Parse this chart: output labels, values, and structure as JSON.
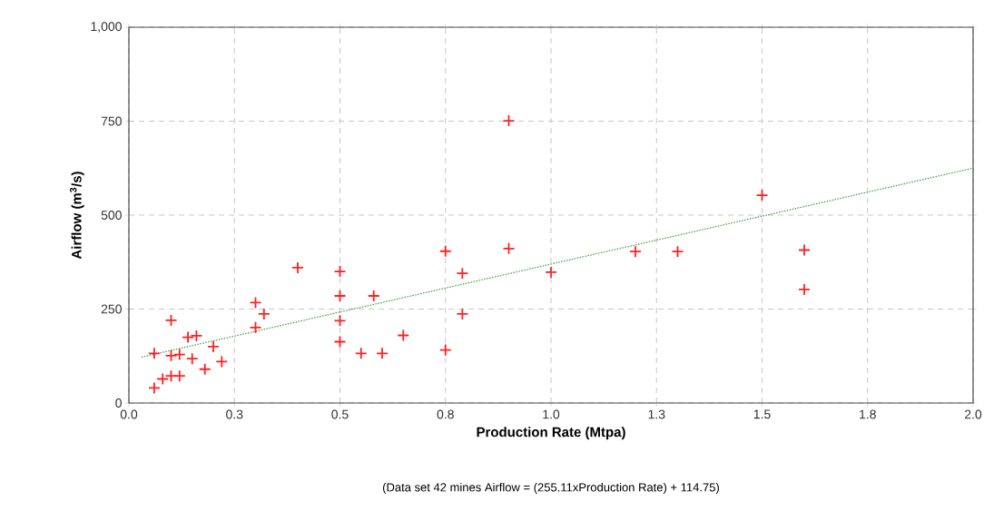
{
  "chart_data": {
    "type": "scatter",
    "xlabel": "Production Rate (Mtpa)",
    "ylabel": "Airflow (m$^{3}$/s)",
    "annotations": [
      "(Data set 42 mines     Airflow = (255.11xProduction Rate) + 114.75)"
    ],
    "xlim": [
      0,
      2.0
    ],
    "xticks": [
      {
        "value": 0,
        "label": "0.0"
      },
      {
        "value": 0.25,
        "label": "0.3"
      },
      {
        "value": 0.5,
        "label": "0.5"
      },
      {
        "value": 0.75,
        "label": "0.8"
      },
      {
        "value": 1.0,
        "label": "1.0"
      },
      {
        "value": 1.25,
        "label": "1.3"
      },
      {
        "value": 1.5,
        "label": "1.5"
      },
      {
        "value": 1.75,
        "label": "1.8"
      },
      {
        "value": 2.0,
        "label": "2.0"
      }
    ],
    "ylim": [
      0,
      1000
    ],
    "yticks": [
      0,
      250,
      500,
      750,
      {
        "value": 1000,
        "label": "1,000"
      }
    ],
    "grid": true,
    "series": [
      {
        "color": "#ff2020",
        "marker": "cross",
        "x": [
          0.06,
          0.06,
          0.08,
          0.1,
          0.12,
          0.1,
          0.1,
          0.12,
          0.15,
          0.14,
          0.16,
          0.18,
          0.2,
          0.22,
          0.3,
          0.32,
          0.3,
          0.4,
          0.5,
          0.5,
          0.58,
          0.5,
          0.5,
          0.55,
          0.6,
          0.65,
          0.75,
          0.79,
          0.79,
          0.75,
          0.9,
          1.0,
          1.2,
          1.3,
          1.5,
          1.6,
          1.6,
          0.9
        ],
        "values": [
          132,
          40,
          64,
          72,
          72,
          220,
          126,
          129,
          118,
          175,
          179,
          90,
          150,
          110,
          267,
          237,
          201,
          360,
          350,
          285,
          285,
          219,
          163,
          132,
          132,
          180,
          404,
          345,
          237,
          141,
          411,
          348,
          403,
          403,
          553,
          407,
          302,
          751
        ]
      },
      {
        "type": "line",
        "color": "#3c9a3c",
        "line_style": "dotted",
        "x": [
          0.03,
          2.0
        ],
        "values": [
          122,
          625
        ]
      }
    ]
  }
}
